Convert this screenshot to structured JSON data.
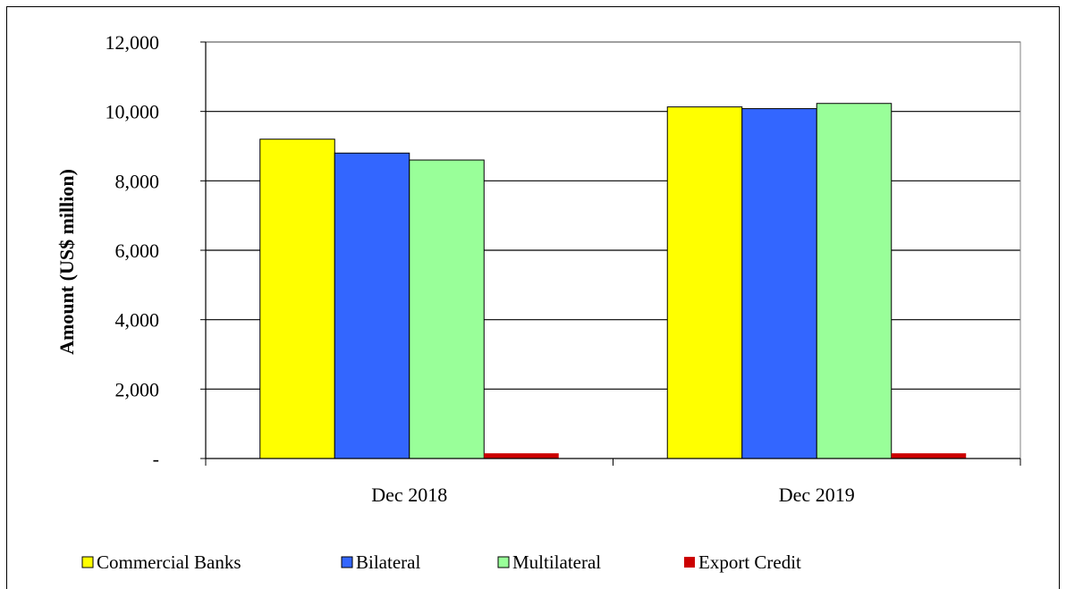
{
  "chart_data": {
    "type": "bar",
    "title": "",
    "xlabel": "",
    "ylabel": "Amount (US$ million)",
    "ylim": [
      0,
      12000
    ],
    "y_ticks": [
      0,
      2000,
      4000,
      6000,
      8000,
      10000,
      12000
    ],
    "y_tick_labels": [
      "-",
      "2,000",
      "4,000",
      "6,000",
      "8,000",
      "10,000",
      "12,000"
    ],
    "grid": true,
    "legend_position": "bottom",
    "categories": [
      "Dec 2018",
      "Dec 2019"
    ],
    "series": [
      {
        "name": "Commercial Banks",
        "color": "#ffff00",
        "values": [
          9200,
          10130
        ]
      },
      {
        "name": "Bilateral",
        "color": "#3366ff",
        "values": [
          8800,
          10080
        ]
      },
      {
        "name": "Multilateral",
        "color": "#99ff99",
        "values": [
          8600,
          10230
        ]
      },
      {
        "name": "Export Credit",
        "color": "#cc0000",
        "values": [
          150,
          150
        ]
      }
    ]
  }
}
